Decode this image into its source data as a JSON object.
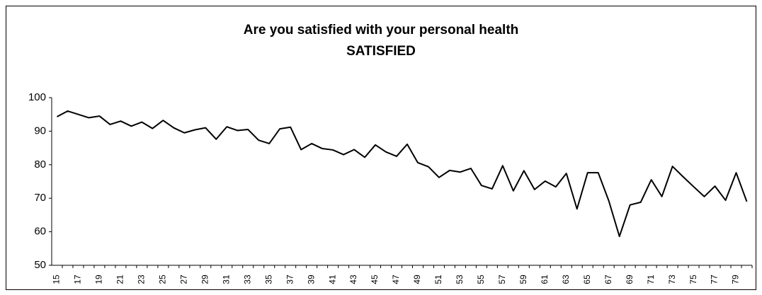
{
  "chart_data": {
    "type": "line",
    "title": "Are you satisfied with your personal health",
    "subtitle": "SATISFIED",
    "categories": [
      "15",
      null,
      "17",
      null,
      "19",
      null,
      "21",
      null,
      "23",
      null,
      "25",
      null,
      "27",
      null,
      "29",
      null,
      "31",
      null,
      "33",
      null,
      "35",
      null,
      "37",
      null,
      "39",
      null,
      "41",
      null,
      "43",
      null,
      "45",
      null,
      "47",
      null,
      "49",
      null,
      "51",
      null,
      "53",
      null,
      "55",
      null,
      "57",
      null,
      "59",
      null,
      "61",
      null,
      "63",
      null,
      "65",
      null,
      "67",
      null,
      "69",
      null,
      "71",
      null,
      "73",
      null,
      "75",
      null,
      "77",
      null,
      "79",
      null
    ],
    "values": [
      94.3,
      96,
      95,
      94,
      94.5,
      92,
      93,
      91.5,
      92.7,
      90.8,
      93.2,
      91,
      89.5,
      90.4,
      91,
      87.6,
      91.3,
      90.2,
      90.5,
      87.3,
      86.3,
      90.7,
      91.2,
      84.5,
      86.3,
      84.8,
      84.4,
      83,
      84.5,
      82.2,
      85.9,
      83.8,
      82.5,
      86.1,
      80.6,
      79.4,
      76.2,
      78.3,
      77.8,
      78.9,
      73.8,
      72.8,
      79.7,
      72.2,
      78.2,
      72.6,
      75.1,
      73.4,
      77.4,
      66.8,
      77.6,
      77.6,
      69.2,
      58.6,
      68,
      68.8,
      75.5,
      70.5,
      79.5,
      76.4,
      73.4,
      70.5,
      73.6,
      69.4,
      77.6,
      69
    ],
    "color": "#000000",
    "ylim": [
      50,
      100
    ],
    "yticks": [
      50,
      60,
      70,
      80,
      90,
      100
    ],
    "grid": false
  }
}
